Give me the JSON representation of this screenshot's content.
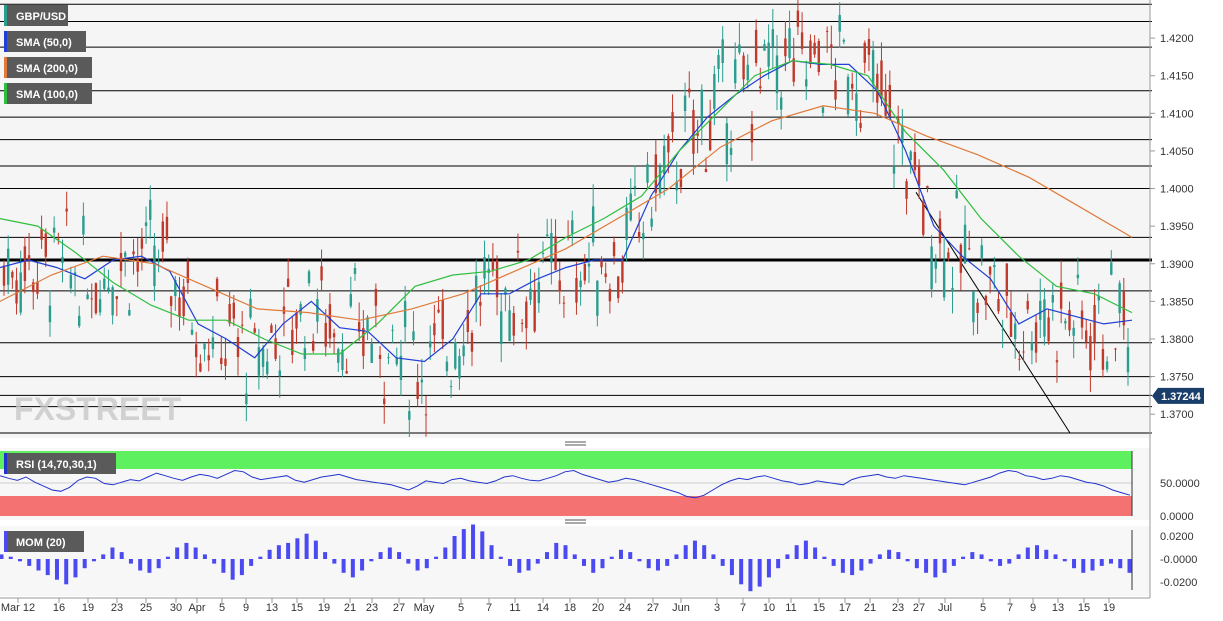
{
  "chart_data": [
    {
      "type": "candlestick",
      "panel": "price",
      "title": "GBP/USD",
      "legend": [
        {
          "label": "GBP/USD",
          "color": "#2a9d8f"
        },
        {
          "label": "SMA (50,0)",
          "color": "#1f3fd6"
        },
        {
          "label": "SMA (200,0)",
          "color": "#e07a3a"
        },
        {
          "label": "SMA (100,0)",
          "color": "#2fbf3f"
        }
      ],
      "y_ticks": [
        "1.4200",
        "1.4150",
        "1.4100",
        "1.4050",
        "1.4000",
        "1.3950",
        "1.3900",
        "1.3850",
        "1.3800",
        "1.3750",
        "1.3700"
      ],
      "ylim": [
        1.3671,
        1.4248
      ],
      "last_price": "1.37244",
      "x_ticks": [
        "Mar 12",
        "16",
        "19",
        "23",
        "25",
        "30",
        "Apr",
        "5",
        "9",
        "13",
        "15",
        "19",
        "21",
        "23",
        "27",
        "May",
        "5",
        "7",
        "11",
        "14",
        "18",
        "20",
        "24",
        "27",
        "Jun",
        "3",
        "7",
        "10",
        "11",
        "15",
        "17",
        "21",
        "23",
        "27",
        "Jul",
        "5",
        "7",
        "9",
        "13",
        "15",
        "19"
      ],
      "horizontal_levels": [
        1.4245,
        1.4222,
        1.4188,
        1.413,
        1.4095,
        1.4065,
        1.403,
        1.4,
        1.3935,
        1.3905,
        1.3864,
        1.3795,
        1.375,
        1.3725,
        1.371,
        1.3675
      ],
      "key_level": 1.3905,
      "trendline": {
        "from": [
          1.3995
        ],
        "to": [
          1.3675
        ]
      },
      "series": [
        {
          "name": "SMA (50,0)",
          "color": "#1f3fd6",
          "values": [
            1.3895,
            1.3905,
            1.3895,
            1.388,
            1.3905,
            1.391,
            1.389,
            1.382,
            1.38,
            1.3775,
            1.382,
            1.385,
            1.3815,
            1.381,
            1.3775,
            1.377,
            1.38,
            1.386,
            1.386,
            1.388,
            1.3895,
            1.3905,
            1.3905,
            1.399,
            1.405,
            1.4095,
            1.4125,
            1.415,
            1.417,
            1.4165,
            1.4165,
            1.413,
            1.405,
            1.395,
            1.391,
            1.388,
            1.382,
            1.384,
            1.383,
            1.382,
            1.3825
          ]
        },
        {
          "name": "SMA (100,0)",
          "color": "#2fbf3f",
          "values": [
            1.396,
            1.395,
            1.3915,
            1.3875,
            1.3845,
            1.3825,
            1.3825,
            1.38,
            1.378,
            1.378,
            1.382,
            1.387,
            1.3885,
            1.389,
            1.3905,
            1.3935,
            1.396,
            1.399,
            1.405,
            1.41,
            1.415,
            1.417,
            1.4165,
            1.415,
            1.4075,
            1.4025,
            1.396,
            1.391,
            1.387,
            1.386,
            1.3835
          ]
        },
        {
          "name": "SMA (200,0)",
          "color": "#e07a3a",
          "values": [
            1.385,
            1.3885,
            1.391,
            1.39,
            1.387,
            1.384,
            1.3835,
            1.3825,
            1.384,
            1.386,
            1.389,
            1.392,
            1.396,
            1.4,
            1.4055,
            1.409,
            1.411,
            1.41,
            1.407,
            1.4045,
            1.4015,
            1.3975,
            1.3935
          ]
        }
      ]
    },
    {
      "type": "line",
      "panel": "rsi",
      "title": "RSI (14,70,30,1)",
      "y_ticks": [
        "50.0000",
        "0.0000"
      ],
      "overbought_color": "#5ef05e",
      "oversold_color": "#f57272",
      "values": [
        62,
        58,
        55,
        60,
        52,
        46,
        40,
        38,
        44,
        55,
        60,
        58,
        50,
        48,
        52,
        56,
        54,
        60,
        66,
        62,
        58,
        55,
        60,
        64,
        62,
        58,
        64,
        70,
        68,
        60,
        56,
        58,
        60,
        62,
        55,
        52,
        56,
        60,
        62,
        64,
        60,
        56,
        54,
        52,
        50,
        48,
        44,
        40,
        46,
        54,
        52,
        50,
        56,
        58,
        54,
        52,
        50,
        54,
        60,
        62,
        58,
        55,
        54,
        58,
        62,
        68,
        70,
        64,
        60,
        56,
        52,
        54,
        58,
        56,
        52,
        48,
        44,
        40,
        36,
        30,
        28,
        32,
        40,
        48,
        54,
        58,
        56,
        60,
        62,
        58,
        54,
        52,
        48,
        50,
        54,
        52,
        50,
        48,
        56,
        60,
        62,
        64,
        60,
        58,
        62,
        60,
        58,
        56,
        54,
        52,
        50,
        48,
        52,
        56,
        60,
        66,
        70,
        68,
        62,
        60,
        56,
        58,
        62,
        60,
        56,
        52,
        50,
        46,
        40,
        36,
        32
      ]
    },
    {
      "type": "bar",
      "panel": "momentum",
      "title": "MOM (20)",
      "y_ticks": [
        "0.0200",
        "-0.0000",
        "-0.0200"
      ],
      "ylim": [
        -0.03,
        0.03
      ],
      "values": [
        0.004,
        0.002,
        -0.002,
        -0.006,
        -0.01,
        -0.014,
        -0.018,
        -0.022,
        -0.016,
        -0.008,
        -0.002,
        0.004,
        0.01,
        0.006,
        -0.004,
        -0.01,
        -0.012,
        -0.008,
        0.002,
        0.01,
        0.014,
        0.01,
        0.004,
        -0.004,
        -0.012,
        -0.018,
        -0.014,
        -0.006,
        0.002,
        0.008,
        0.012,
        0.014,
        0.018,
        0.022,
        0.016,
        0.006,
        -0.004,
        -0.012,
        -0.016,
        -0.01,
        -0.002,
        0.006,
        0.01,
        0.006,
        -0.004,
        -0.01,
        -0.008,
        0.002,
        0.01,
        0.02,
        0.026,
        0.03,
        0.024,
        0.012,
        0.002,
        -0.006,
        -0.012,
        -0.01,
        -0.004,
        0.006,
        0.014,
        0.012,
        0.004,
        -0.006,
        -0.012,
        -0.008,
        0.002,
        0.008,
        0.006,
        -0.002,
        -0.008,
        -0.01,
        -0.006,
        0.004,
        0.012,
        0.016,
        0.012,
        0.004,
        -0.006,
        -0.014,
        -0.022,
        -0.028,
        -0.024,
        -0.016,
        -0.008,
        0.004,
        0.012,
        0.016,
        0.01,
        0.002,
        -0.006,
        -0.012,
        -0.014,
        -0.01,
        -0.004,
        0.004,
        0.008,
        0.006,
        -0.002,
        -0.008,
        -0.012,
        -0.016,
        -0.012,
        -0.006,
        0.002,
        0.006,
        0.004,
        -0.002,
        -0.006,
        -0.004,
        0.004,
        0.01,
        0.012,
        0.008,
        0.004,
        -0.002,
        -0.008,
        -0.012,
        -0.01,
        -0.006,
        -0.004,
        -0.008,
        -0.012
      ]
    }
  ],
  "watermark": "FXSTREET"
}
